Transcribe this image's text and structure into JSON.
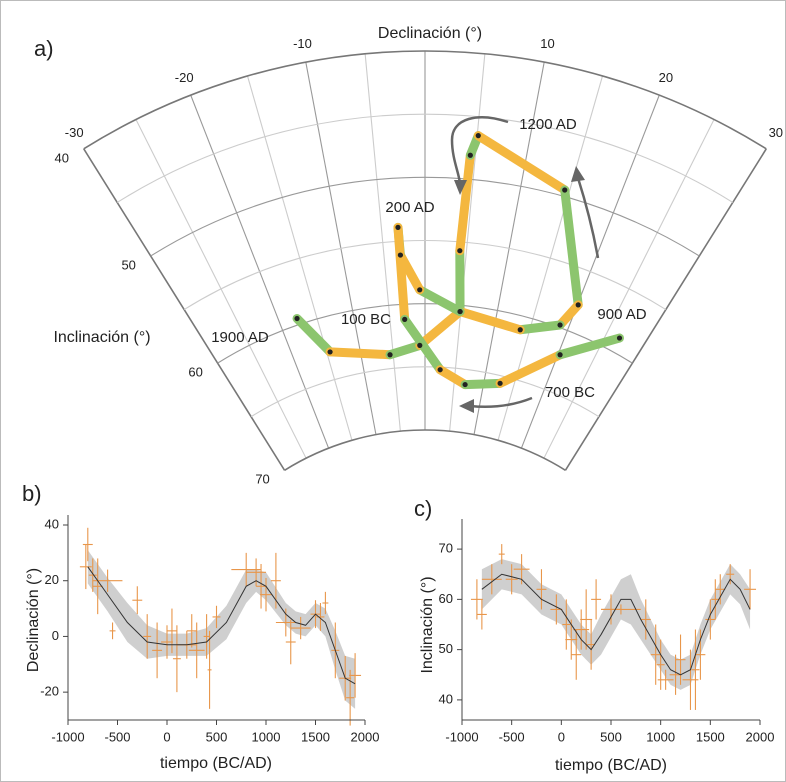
{
  "chart_data": [
    {
      "type": "fan",
      "panel": "a)",
      "xlabel": "Declinación (°)",
      "ylabel": "Inclinación (°)",
      "xlim": [
        -30,
        30
      ],
      "xticks": [
        -30,
        -20,
        -10,
        10,
        20,
        30
      ],
      "ylim": [
        40,
        70
      ],
      "yticks": [
        40,
        50,
        60,
        70
      ],
      "series": [
        {
          "colors": [
            "#8cc56e",
            "#f4b73f"
          ],
          "point_color": "#222222",
          "x": [
            -17.6,
            -14.5,
            -5.5,
            -0.8,
            4.9,
            4.2,
            4.5,
            5.1,
            14.5,
            20.1,
            18.8,
            13.7,
            4.9,
            -0.7,
            -3.0,
            -3.1,
            -2.9,
            2.5,
            6.9,
            12.7,
            20.3,
            26.8
          ],
          "values": [
            59.5,
            62.8,
            63.9,
            63.3,
            60.5,
            55.7,
            48.1,
            46.5,
            49.5,
            57.8,
            59.8,
            61.1,
            60.5,
            58.9,
            56.1,
            53.9,
            61.2,
            65.2,
            66.2,
            65.6,
            62.0,
            58.8
          ]
        }
      ],
      "annotations": [
        "1200 AD",
        "200 AD",
        "100 BC",
        "1900 AD",
        "900 AD",
        "700 BC"
      ]
    },
    {
      "type": "errorbar",
      "panel": "b)",
      "xlabel": "tiempo (BC/AD)",
      "ylabel": "Declinación (°)",
      "xlim": [
        -1000,
        2000
      ],
      "xticks": [
        -1000,
        -500,
        0,
        500,
        1000,
        1500,
        2000
      ],
      "ylim": [
        -30,
        40
      ],
      "yticks": [
        -20,
        0,
        20,
        40
      ],
      "point_color": "#e8964a",
      "curve_color": "#333333",
      "band_color": "#cfcfcf",
      "curve": {
        "x": [
          -800,
          -600,
          -400,
          -200,
          0,
          200,
          400,
          600,
          800,
          900,
          1000,
          1200,
          1300,
          1400,
          1500,
          1600,
          1700,
          1800,
          1900
        ],
        "values": [
          25,
          15,
          5,
          -2,
          -3,
          -3,
          -2,
          5,
          18,
          20,
          18,
          8,
          5,
          4,
          8,
          5,
          -5,
          -15,
          -17
        ],
        "lower": [
          19,
          9,
          -2,
          -8,
          -7,
          -7,
          -7,
          -1,
          12,
          16,
          13,
          4,
          1,
          0,
          4,
          0,
          -12,
          -23,
          -26
        ],
        "upper": [
          31,
          21,
          12,
          4,
          1,
          1,
          3,
          11,
          24,
          24,
          23,
          12,
          9,
          8,
          12,
          10,
          2,
          -7,
          -8
        ]
      },
      "points": {
        "x": [
          -800,
          -820,
          -750,
          -700,
          -600,
          -550,
          -300,
          -200,
          -100,
          0,
          50,
          100,
          200,
          250,
          300,
          400,
          430,
          500,
          800,
          900,
          950,
          1000,
          1100,
          1200,
          1250,
          1350,
          1500,
          1550,
          1600,
          1700,
          1800,
          1850,
          1900
        ],
        "values": [
          33,
          25,
          22,
          18,
          20,
          2,
          13,
          0,
          -5,
          -2,
          2,
          -8,
          -3,
          2,
          -5,
          0,
          -12,
          7,
          24,
          23,
          18,
          15,
          20,
          5,
          -2,
          3,
          8,
          7,
          12,
          -5,
          -15,
          -22,
          -14
        ],
        "xerr": [
          50,
          60,
          40,
          50,
          150,
          30,
          50,
          40,
          50,
          60,
          50,
          40,
          100,
          50,
          80,
          30,
          20,
          40,
          150,
          100,
          50,
          60,
          50,
          100,
          50,
          100,
          50,
          40,
          30,
          40,
          60,
          40,
          60
        ],
        "yerr": [
          6,
          8,
          6,
          10,
          4,
          3,
          5,
          8,
          10,
          6,
          8,
          12,
          5,
          6,
          10,
          8,
          14,
          4,
          6,
          5,
          8,
          6,
          10,
          5,
          8,
          4,
          5,
          5,
          4,
          10,
          8,
          10,
          8
        ]
      }
    },
    {
      "type": "errorbar",
      "panel": "c)",
      "xlabel": "tiempo (BC/AD)",
      "ylabel": "Inclinación (°)",
      "xlim": [
        -1000,
        2000
      ],
      "xticks": [
        -1000,
        -500,
        0,
        500,
        1000,
        1500,
        2000
      ],
      "ylim": [
        36,
        74
      ],
      "yticks": [
        40,
        50,
        60,
        70
      ],
      "point_color": "#e8964a",
      "curve_color": "#333333",
      "band_color": "#cfcfcf",
      "curve": {
        "x": [
          -800,
          -600,
          -400,
          -200,
          0,
          200,
          300,
          400,
          600,
          700,
          800,
          1000,
          1100,
          1200,
          1300,
          1400,
          1500,
          1700,
          1800,
          1900
        ],
        "values": [
          62,
          65,
          64,
          60,
          58,
          52,
          50,
          53,
          60,
          60,
          56,
          49,
          46,
          45,
          46,
          52,
          57,
          64,
          62,
          58
        ],
        "lower": [
          58,
          62,
          61,
          57,
          55,
          49,
          47,
          49,
          56,
          55,
          52,
          46,
          43,
          42,
          43,
          49,
          54,
          61,
          59,
          54
        ],
        "upper": [
          66,
          68,
          67,
          63,
          61,
          55,
          53,
          57,
          64,
          65,
          60,
          52,
          49,
          48,
          49,
          55,
          60,
          67,
          65,
          62
        ]
      },
      "points": {
        "x": [
          -850,
          -800,
          -700,
          -600,
          -500,
          -400,
          -200,
          -50,
          50,
          100,
          150,
          200,
          250,
          300,
          350,
          500,
          600,
          850,
          950,
          1000,
          1050,
          1150,
          1200,
          1300,
          1350,
          1400,
          1500,
          1550,
          1600,
          1700,
          1900
        ],
        "values": [
          60,
          57,
          64,
          69,
          64,
          66,
          62,
          58,
          55,
          52,
          49,
          54,
          56,
          51,
          60,
          58,
          58,
          56,
          49,
          47,
          44,
          45,
          48,
          44,
          46,
          49,
          56,
          60,
          62,
          65,
          62
        ],
        "xerr": [
          60,
          50,
          100,
          30,
          60,
          80,
          50,
          60,
          40,
          60,
          50,
          80,
          60,
          40,
          50,
          100,
          200,
          50,
          50,
          40,
          80,
          60,
          50,
          80,
          40,
          50,
          50,
          40,
          50,
          40,
          60
        ],
        "yerr": [
          4,
          3,
          3,
          2,
          3,
          3,
          4,
          3,
          5,
          4,
          5,
          4,
          6,
          5,
          4,
          3,
          1,
          4,
          6,
          5,
          2,
          4,
          5,
          6,
          8,
          5,
          4,
          4,
          3,
          2,
          4
        ]
      }
    }
  ]
}
